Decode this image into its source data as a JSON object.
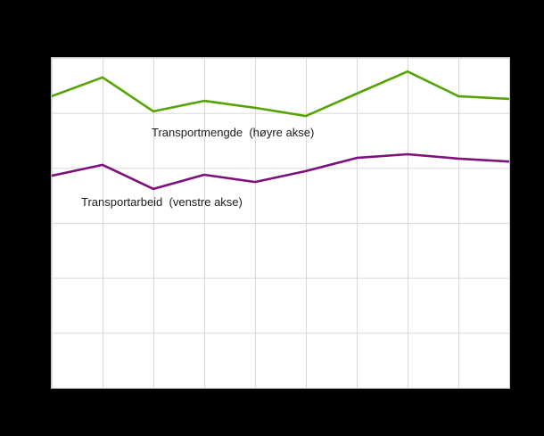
{
  "labels": {
    "transportmengde": "Transportmengde  (høyre akse)",
    "transportarbeid": "Transportarbeid  (venstre akse)"
  },
  "colors": {
    "transportmengde_line": "#55a306",
    "transportarbeid_line": "#7d107d",
    "gridline": "#d9d9d9",
    "plot_background": "#ffffff",
    "page_background": "#000000",
    "label_text": "#1a1a1a"
  },
  "chart_data": {
    "type": "line",
    "note": "Axis tick labels are not visible in the screenshot (black-on-black margins); values estimated as percent of plot height (0 = bottom gridline, 100 = top gridline).",
    "x_points": 10,
    "series": [
      {
        "name": "Transportmengde (høyre akse)",
        "axis": "right",
        "color": "#55a306",
        "values": [
          88.4,
          94.1,
          83.8,
          87.0,
          84.9,
          82.4,
          89.2,
          95.9,
          88.4,
          87.6
        ]
      },
      {
        "name": "Transportarbeid (venstre akse)",
        "axis": "left",
        "color": "#7d107d",
        "values": [
          64.3,
          67.6,
          60.3,
          64.6,
          62.4,
          65.7,
          69.7,
          70.8,
          69.5,
          68.6
        ]
      }
    ],
    "ylim": [
      0,
      100
    ],
    "grid": true,
    "grid_columns": 9,
    "grid_rows": 6,
    "legend": "inline-annotations"
  }
}
